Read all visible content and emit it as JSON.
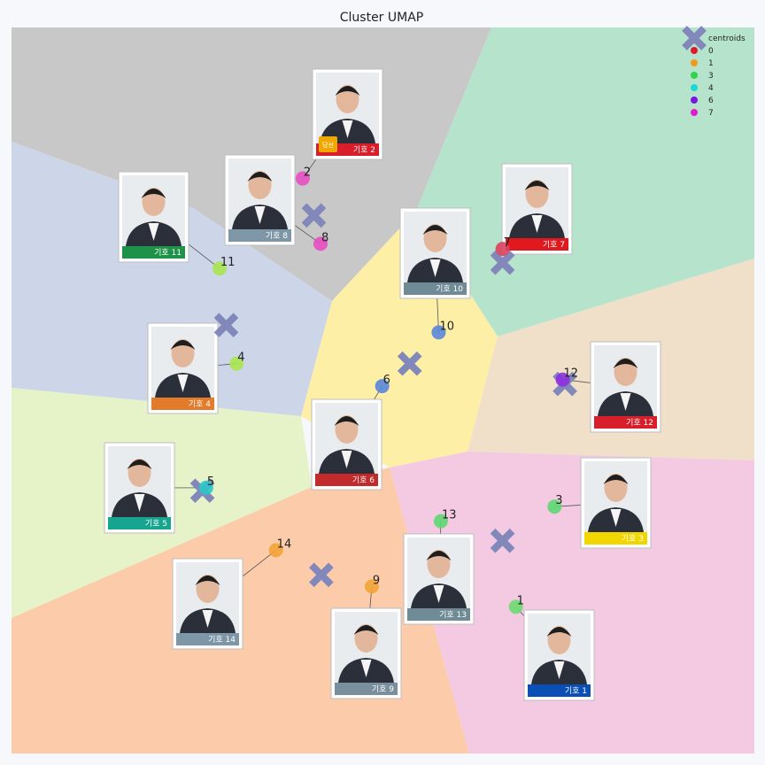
{
  "chart_data": {
    "type": "scatter",
    "title": "Cluster UMAP",
    "xlim": [
      0,
      1
    ],
    "ylim": [
      0,
      1
    ],
    "grid": false,
    "legend_placement": "top-right",
    "legend": {
      "centroid_label": "centroids",
      "entries": [
        {
          "label": "0",
          "color": "#e0192f"
        },
        {
          "label": "1",
          "color": "#f39a1b"
        },
        {
          "label": "3",
          "color": "#2fd44a"
        },
        {
          "label": "4",
          "color": "#1fd6d6"
        },
        {
          "label": "6",
          "color": "#7b16e0"
        },
        {
          "label": "7",
          "color": "#e01bd0"
        }
      ]
    },
    "region_colors": {
      "grey": "#c8c8c8",
      "mint": "#b5e3cc",
      "blue": "#cdd6e8",
      "yellow": "#fdefa6",
      "beige": "#f0dfc9",
      "lime": "#e6f2c8",
      "peach": "#fcccaa",
      "pink": "#f4c9e2"
    },
    "centroid_color": "#8289ba",
    "centroids": [
      {
        "x": 0.407,
        "y": 0.741
      },
      {
        "x": 0.289,
        "y": 0.59
      },
      {
        "x": 0.536,
        "y": 0.537
      },
      {
        "x": 0.661,
        "y": 0.676
      },
      {
        "x": 0.745,
        "y": 0.509
      },
      {
        "x": 0.257,
        "y": 0.362
      },
      {
        "x": 0.417,
        "y": 0.246
      },
      {
        "x": 0.661,
        "y": 0.293
      }
    ],
    "points": [
      {
        "label": "1",
        "x": 0.679,
        "y": 0.202,
        "color": "#6ddc70",
        "card": "기호 1",
        "band": "#0a4fb5"
      },
      {
        "label": "2",
        "x": 0.392,
        "y": 0.792,
        "color": "#e64fc2",
        "card": "기호 2",
        "band": "#d81e2a"
      },
      {
        "label": "3",
        "x": 0.731,
        "y": 0.34,
        "color": "#5dd872",
        "card": "기호 3",
        "band": "#f1d600"
      },
      {
        "label": "4",
        "x": 0.303,
        "y": 0.537,
        "color": "#a8e651",
        "card": "기호 4",
        "band": "#e27b2a"
      },
      {
        "label": "5",
        "x": 0.262,
        "y": 0.366,
        "color": "#2ac6c8",
        "card": "기호 5",
        "band": "#17a58f"
      },
      {
        "label": "6",
        "x": 0.499,
        "y": 0.506,
        "color": "#5a86dc",
        "card": "기호 6",
        "band": "#c22b2b"
      },
      {
        "label": "7",
        "x": 0.661,
        "y": 0.695,
        "color": "#d9415e",
        "card": "기호 7",
        "band": "#e0191f"
      },
      {
        "label": "8",
        "x": 0.416,
        "y": 0.702,
        "color": "#e64fc2",
        "card": "기호 8",
        "band": "#7e97a6"
      },
      {
        "label": "9",
        "x": 0.485,
        "y": 0.23,
        "color": "#f3a436",
        "card": "기호 9",
        "band": "#7a8f9e"
      },
      {
        "label": "10",
        "x": 0.575,
        "y": 0.58,
        "color": "#5a86dc",
        "card": "기호 10",
        "band": "#6f8b96"
      },
      {
        "label": "11",
        "x": 0.28,
        "y": 0.668,
        "color": "#a8e651",
        "card": "기호 11",
        "band": "#1e9248"
      },
      {
        "label": "12",
        "x": 0.742,
        "y": 0.515,
        "color": "#8c2fe0",
        "card": "기호 12",
        "band": "#d81e2a"
      },
      {
        "label": "13",
        "x": 0.578,
        "y": 0.32,
        "color": "#5dd872",
        "card": "기호 13",
        "band": "#6f8b96"
      },
      {
        "label": "14",
        "x": 0.356,
        "y": 0.28,
        "color": "#f3a436",
        "card": "기호 14",
        "band": "#7e97a6"
      }
    ],
    "badge_text": "당선"
  }
}
